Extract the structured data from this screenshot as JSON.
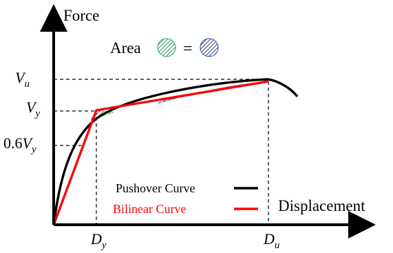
{
  "axes": {
    "y_title": "Force",
    "x_title": "Displacement"
  },
  "y_ticks": [
    {
      "main": "V",
      "sub": "u"
    },
    {
      "main": "V",
      "sub": "y"
    },
    {
      "prefix": "0.6",
      "main": "V",
      "sub": "y"
    }
  ],
  "x_ticks": [
    {
      "main": "D",
      "sub": "y"
    },
    {
      "main": "D",
      "sub": "u"
    }
  ],
  "area_note": {
    "label": "Area",
    "equals": "=",
    "hatch_colors": [
      "#2e9e5b",
      "#2f3f8f"
    ]
  },
  "legend": [
    {
      "label": "Pushover Curve",
      "color": "#000000"
    },
    {
      "label": "Bilinear Curve",
      "color": "#ff0000"
    }
  ],
  "colors": {
    "axis": "#000000",
    "pushover": "#000000",
    "bilinear": "#ff0000",
    "green_hatch": "#2e9e5b",
    "blue_hatch": "#2f3f8f"
  }
}
